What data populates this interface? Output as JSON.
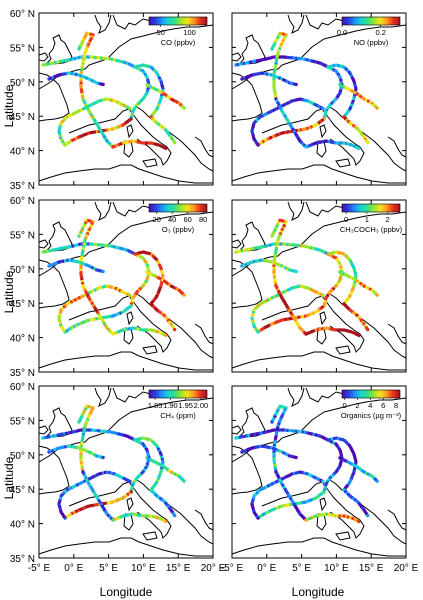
{
  "figure": {
    "ylabel": "Latitude",
    "xlabel": "Longitude",
    "lat_ticks": [
      "60° N",
      "55° N",
      "50° N",
      "45° N",
      "40° N",
      "35° N"
    ],
    "lon_ticks": [
      "-5° E",
      "0° E",
      "5° E",
      "10° E",
      "15° E",
      "20° E"
    ]
  },
  "panels": [
    {
      "id": "co",
      "colorbar_ticks": [
        "50",
        "100"
      ],
      "colorbar_label": "CO (ppbv)",
      "tick_values": [
        50,
        100
      ],
      "range": [
        30,
        130
      ]
    },
    {
      "id": "no",
      "colorbar_ticks": [
        "0.0",
        "0.2"
      ],
      "colorbar_label": "NO (ppbv)",
      "tick_values": [
        0.0,
        0.2
      ],
      "range": [
        0,
        0.3
      ]
    },
    {
      "id": "o3",
      "colorbar_ticks": [
        "20",
        "40",
        "60",
        "80"
      ],
      "colorbar_label": "O₃ (ppbv)",
      "tick_values": [
        20,
        40,
        60,
        80
      ],
      "range": [
        10,
        85
      ]
    },
    {
      "id": "acetone",
      "colorbar_ticks": [
        "0",
        "1",
        "2"
      ],
      "colorbar_label": "CH₃COCH₃ (ppbv)",
      "tick_values": [
        0,
        1,
        2
      ],
      "range": [
        -0.2,
        2.6
      ]
    },
    {
      "id": "ch4",
      "colorbar_ticks": [
        "1.85",
        "1.90",
        "1.95",
        "2.00"
      ],
      "colorbar_label": "CH₄ (ppm)",
      "tick_values": [
        1.85,
        1.9,
        1.95,
        2.0
      ],
      "range": [
        1.83,
        2.02
      ]
    },
    {
      "id": "organics",
      "colorbar_ticks": [
        "0",
        "2",
        "4",
        "6",
        "8"
      ],
      "colorbar_label": "Organics (µg m⁻³)",
      "tick_values": [
        0,
        2,
        4,
        6,
        8
      ],
      "range": [
        -0.4,
        8.6
      ]
    }
  ],
  "colorscale": [
    "#4b0cb4",
    "#2a3fe0",
    "#1e90ff",
    "#19d3d3",
    "#2fe08a",
    "#9be52a",
    "#f0e21e",
    "#ff9b1e",
    "#e8321e",
    "#a8141e"
  ]
}
